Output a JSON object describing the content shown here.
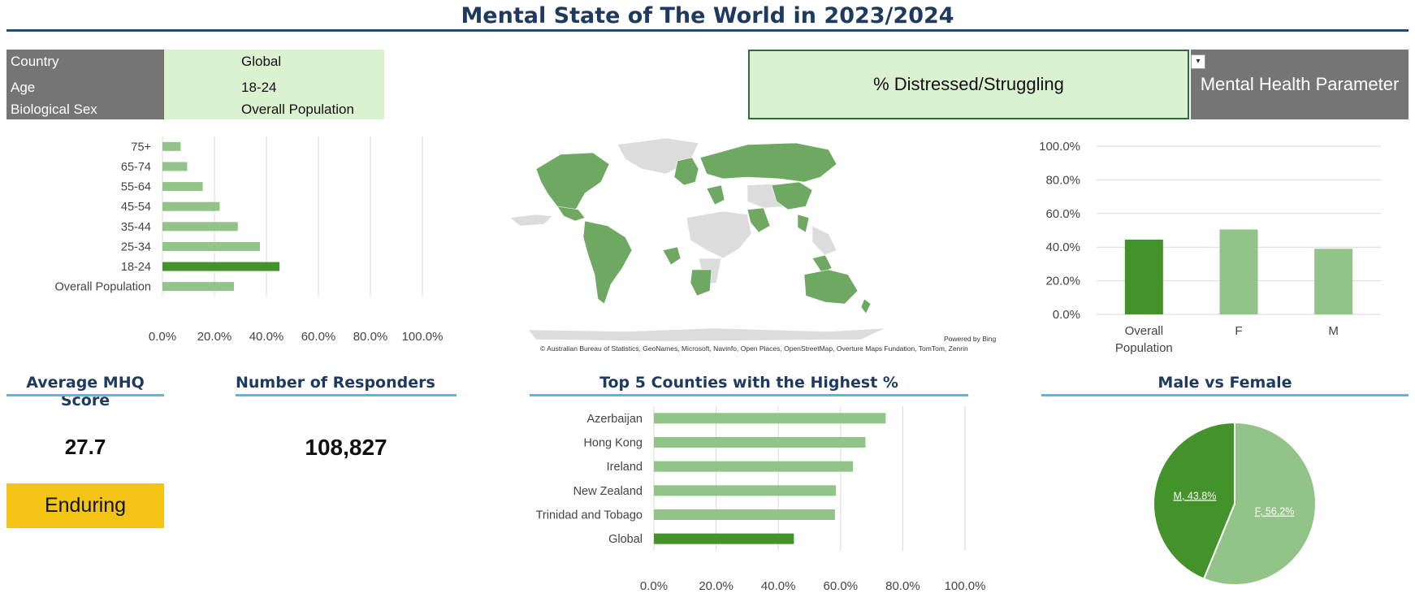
{
  "title": "Mental State of The World in 2023/2024",
  "filters": [
    {
      "label": "Country",
      "value": "Global"
    },
    {
      "label": "Age",
      "value": "18-24"
    },
    {
      "label": "Biological Sex",
      "value": "Overall Population"
    }
  ],
  "parameter": {
    "selected": "% Distressed/Struggling",
    "label": "Mental Health Parameter"
  },
  "map": {
    "credit": "© Australian Bureau of Statistics, GeoNames, Microsoft, Navinfo, Open Places, OpenStreetMap, Overture Maps Fundation, TomTom, Zenrin",
    "powered": "Powered by Bing"
  },
  "kpi": {
    "mhq_title": "Average MHQ Score",
    "mhq_value": "27.7",
    "mhq_badge": "Enduring",
    "responders_title": "Number of Responders",
    "responders_value": "108,827"
  },
  "top5_title": "Top 5 Counties with the Highest %",
  "pie_title": "Male vs Female",
  "colors": {
    "highlight": "#43922a",
    "normal": "#92c388",
    "rule": "#5bb5e0",
    "title": "#1f3a5f",
    "badge": "#f3c316"
  },
  "chart_data": [
    {
      "id": "age",
      "type": "bar",
      "orientation": "horizontal",
      "categories": [
        "75+",
        "65-74",
        "55-64",
        "45-54",
        "35-44",
        "25-34",
        "18-24",
        "Overall Population"
      ],
      "values": [
        0.07,
        0.095,
        0.155,
        0.22,
        0.29,
        0.375,
        0.45,
        0.275
      ],
      "highlight": "18-24",
      "xlim": [
        0,
        1
      ],
      "xticks": [
        "0.0%",
        "20.0%",
        "40.0%",
        "60.0%",
        "80.0%",
        "100.0%"
      ]
    },
    {
      "id": "sex",
      "type": "bar",
      "orientation": "vertical",
      "categories": [
        "Overall Population",
        "F",
        "M"
      ],
      "values": [
        0.445,
        0.505,
        0.39
      ],
      "highlight": "Overall Population",
      "ylim": [
        0,
        1
      ],
      "yticks": [
        "0.0%",
        "20.0%",
        "40.0%",
        "60.0%",
        "80.0%",
        "100.0%"
      ]
    },
    {
      "id": "top5",
      "type": "bar",
      "orientation": "horizontal",
      "categories": [
        "Azerbaijan",
        "Hong Kong",
        "Ireland",
        "New Zealand",
        "Trinidad and Tobago",
        "Global"
      ],
      "values": [
        0.745,
        0.68,
        0.64,
        0.585,
        0.582,
        0.45
      ],
      "highlight": "Global",
      "xlim": [
        0,
        1
      ],
      "xticks": [
        "0.0%",
        "20.0%",
        "40.0%",
        "60.0%",
        "80.0%",
        "100.0%"
      ]
    },
    {
      "id": "pie",
      "type": "pie",
      "slices": [
        {
          "name": "F",
          "value": 56.2,
          "label": "F, 56.2%",
          "color": "#92c388"
        },
        {
          "name": "M",
          "value": 43.8,
          "label": "M, 43.8%",
          "color": "#43922a"
        }
      ]
    }
  ]
}
